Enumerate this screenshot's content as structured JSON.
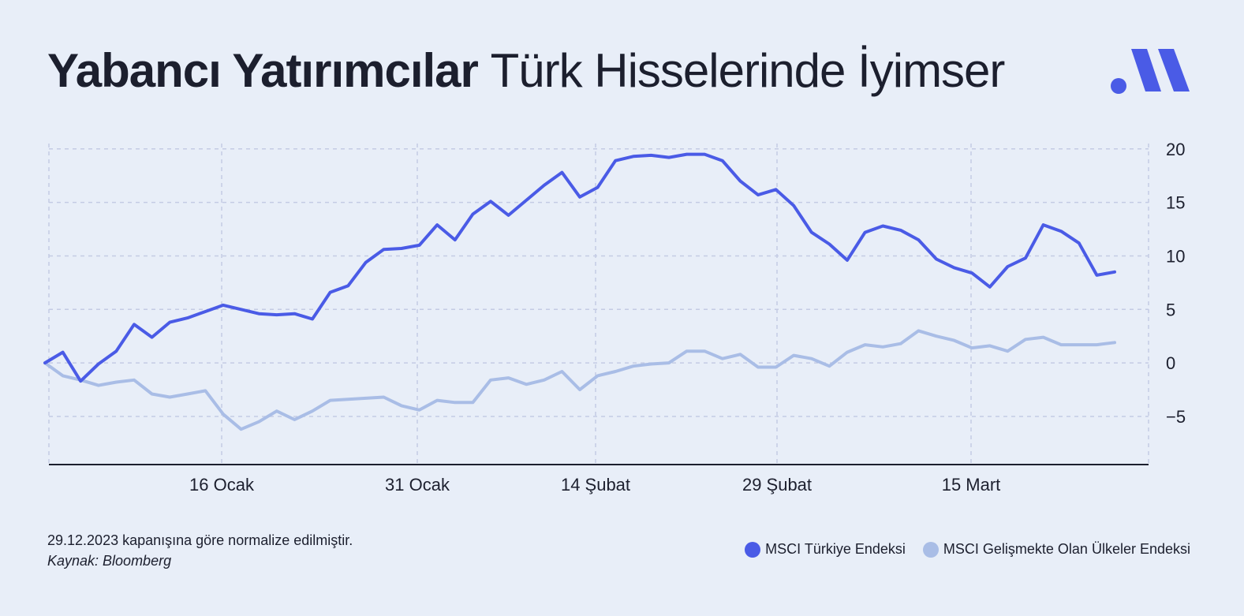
{
  "title": {
    "bold": "Yabancı Yatırımcılar",
    "light": "Türk Hisselerinde İyimser"
  },
  "footnote": {
    "note": "29.12.2023 kapanışına göre normalize edilmiştir.",
    "source": "Kaynak: Bloomberg"
  },
  "colors": {
    "background": "#e8eef8",
    "turkey": "#4a5be6",
    "emerging": "#a9bde6",
    "grid": "#c4cbe4",
    "axis": "#1c1f2e"
  },
  "chart_data": {
    "type": "line",
    "title": "",
    "xlabel": "",
    "ylabel": "",
    "ylim": [
      -9.5,
      20.5
    ],
    "y_ticks": [
      20,
      15,
      10,
      5,
      0,
      -5
    ],
    "y_axis_position": "right",
    "grid": true,
    "legend_position": "bottom-right",
    "x_tick_labels": [
      "16 Ocak",
      "31 Ocak",
      "14 Şubat",
      "29 Şubat",
      "15 Mart"
    ],
    "series": [
      {
        "name": "MSCI Türkiye Endeksi",
        "color": "#4a5be6",
        "values": [
          0.0,
          1.0,
          -1.7,
          -0.1,
          1.1,
          3.6,
          2.4,
          3.8,
          4.2,
          4.8,
          5.4,
          5.0,
          4.6,
          4.5,
          4.6,
          4.1,
          6.6,
          7.2,
          9.4,
          10.6,
          10.7,
          11.0,
          12.9,
          11.5,
          13.9,
          15.1,
          13.8,
          15.2,
          16.6,
          17.8,
          15.5,
          16.4,
          18.9,
          19.3,
          19.4,
          19.2,
          19.5,
          19.5,
          18.9,
          17.0,
          15.7,
          16.2,
          14.7,
          12.2,
          11.1,
          9.6,
          12.2,
          12.8,
          12.4,
          11.5,
          9.7,
          8.9,
          8.4,
          7.1,
          9.0,
          9.8,
          12.9,
          12.3,
          11.2,
          8.2,
          8.5
        ]
      },
      {
        "name": "MSCI Gelişmekte Olan Ülkeler Endeksi",
        "color": "#a9bde6",
        "values": [
          0.0,
          -1.2,
          -1.6,
          -2.1,
          -1.8,
          -1.6,
          -2.9,
          -3.2,
          -2.9,
          -2.6,
          -4.8,
          -6.2,
          -5.5,
          -4.5,
          -5.3,
          -4.5,
          -3.5,
          -3.4,
          -3.3,
          -3.2,
          -4.0,
          -4.4,
          -3.5,
          -3.7,
          -3.7,
          -1.6,
          -1.4,
          -2.0,
          -1.6,
          -0.8,
          -2.5,
          -1.2,
          -0.8,
          -0.3,
          -0.1,
          0.0,
          1.1,
          1.1,
          0.4,
          0.8,
          -0.4,
          -0.4,
          0.7,
          0.4,
          -0.3,
          1.0,
          1.7,
          1.5,
          1.8,
          3.0,
          2.5,
          2.1,
          1.4,
          1.6,
          1.1,
          2.2,
          2.4,
          1.7,
          1.7,
          1.7,
          1.9
        ]
      }
    ]
  }
}
